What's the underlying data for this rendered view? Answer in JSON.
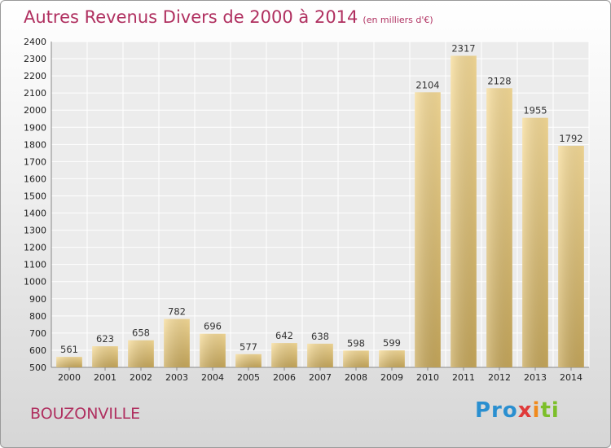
{
  "chart_data": {
    "type": "bar",
    "title": "Autres Revenus Divers de 2000 à 2014",
    "subtitle": "(en milliers d'€)",
    "categories": [
      "2000",
      "2001",
      "2002",
      "2003",
      "2004",
      "2005",
      "2006",
      "2007",
      "2008",
      "2009",
      "2010",
      "2011",
      "2012",
      "2013",
      "2014"
    ],
    "values": [
      561,
      623,
      658,
      782,
      696,
      577,
      642,
      638,
      598,
      599,
      2104,
      2317,
      2128,
      1955,
      1792
    ],
    "ylim": [
      500,
      2400
    ],
    "yticks": [
      500,
      600,
      700,
      800,
      900,
      1000,
      1100,
      1200,
      1300,
      1400,
      1500,
      1600,
      1700,
      1800,
      1900,
      2000,
      2100,
      2200,
      2300,
      2400
    ],
    "grid": true,
    "bar_color": "#e8c97a"
  },
  "commune": "BOUZONVILLE",
  "logo": {
    "part1": "Pro",
    "part2": "x",
    "part3": "i",
    "part4": "ti"
  }
}
